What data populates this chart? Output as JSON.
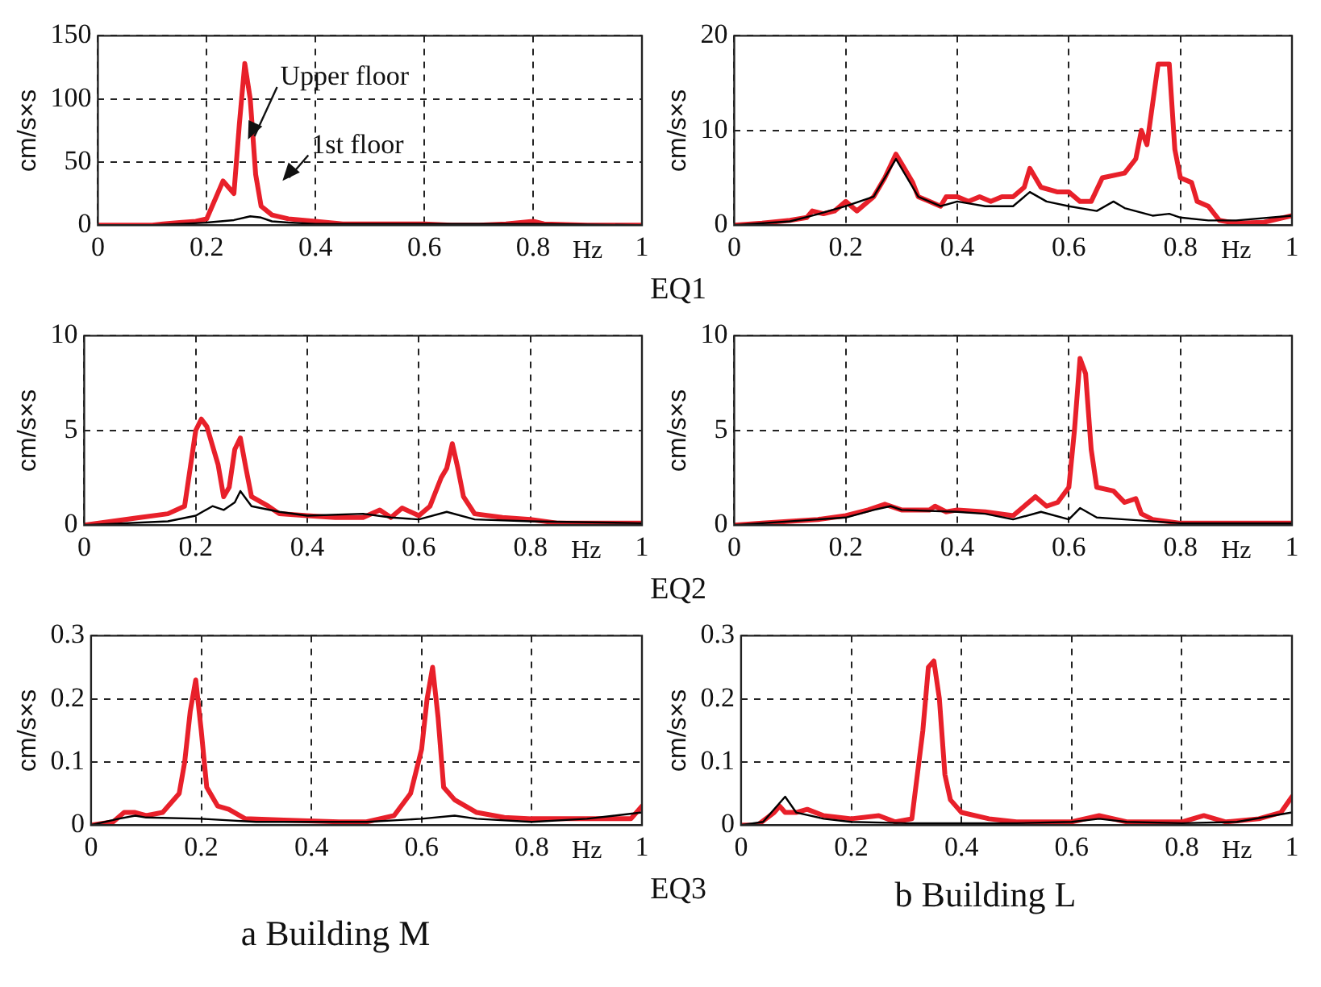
{
  "chart_data": [
    {
      "type": "line",
      "ylabel": "cm/s×s",
      "xlabel": "Hz",
      "annotations": [
        "EQ1"
      ],
      "xlim": [
        0,
        1
      ],
      "ylim": [
        0,
        150
      ],
      "xticks": [
        0,
        0.2,
        0.4,
        0.6,
        0.8,
        1
      ],
      "yticks": [
        0,
        50,
        100,
        150
      ],
      "grid": true,
      "legend": false,
      "marker": "none",
      "series": [
        {
          "name": "Upper floor",
          "color": "#e8202a",
          "x": [
            0,
            0.1,
            0.12,
            0.15,
            0.18,
            0.2,
            0.22,
            0.23,
            0.24,
            0.25,
            0.26,
            0.27,
            0.28,
            0.29,
            0.3,
            0.32,
            0.35,
            0.4,
            0.45,
            0.5,
            0.6,
            0.65,
            0.7,
            0.75,
            0.8,
            0.82,
            0.9,
            1
          ],
          "values": [
            0,
            0,
            1,
            2,
            3,
            5,
            25,
            35,
            30,
            25,
            80,
            128,
            100,
            40,
            15,
            8,
            5,
            3,
            1,
            1,
            1,
            0,
            0,
            1,
            3,
            1,
            0,
            0
          ]
        },
        {
          "name": "1st floor",
          "color": "#000000",
          "x": [
            0,
            0.1,
            0.2,
            0.25,
            0.28,
            0.3,
            0.32,
            0.35,
            0.4,
            0.5,
            0.6,
            0.8,
            1
          ],
          "values": [
            0,
            0,
            2,
            4,
            7,
            6,
            3,
            2,
            1,
            1,
            1,
            1,
            0
          ]
        }
      ]
    },
    {
      "type": "line",
      "ylabel": "cm/s×s",
      "xlabel": "Hz",
      "xlim": [
        0,
        1
      ],
      "ylim": [
        0,
        20
      ],
      "xticks": [
        0,
        0.2,
        0.4,
        0.6,
        0.8,
        1
      ],
      "yticks": [
        0,
        10,
        20
      ],
      "grid": true,
      "legend": false,
      "marker": "none",
      "series": [
        {
          "color": "#e8202a",
          "x": [
            0,
            0.05,
            0.1,
            0.13,
            0.14,
            0.16,
            0.18,
            0.2,
            0.22,
            0.25,
            0.27,
            0.29,
            0.3,
            0.32,
            0.33,
            0.35,
            0.37,
            0.38,
            0.4,
            0.42,
            0.44,
            0.46,
            0.48,
            0.5,
            0.52,
            0.53,
            0.55,
            0.58,
            0.6,
            0.62,
            0.64,
            0.66,
            0.7,
            0.72,
            0.73,
            0.74,
            0.76,
            0.78,
            0.79,
            0.8,
            0.82,
            0.83,
            0.85,
            0.87,
            0.9,
            0.95,
            1
          ],
          "values": [
            0,
            0.2,
            0.5,
            0.8,
            1.5,
            1.2,
            1.5,
            2.5,
            1.5,
            3,
            5,
            7.5,
            6.5,
            4.5,
            3,
            2.5,
            2,
            3,
            3,
            2.5,
            3,
            2.5,
            3,
            3,
            4,
            6,
            4,
            3.5,
            3.5,
            2.5,
            2.5,
            5,
            5.5,
            7,
            10,
            8.5,
            17,
            17,
            8,
            5,
            4.5,
            2.5,
            2,
            0.5,
            0.2,
            0.3,
            1
          ]
        },
        {
          "color": "#000000",
          "x": [
            0,
            0.1,
            0.14,
            0.2,
            0.25,
            0.29,
            0.31,
            0.33,
            0.37,
            0.4,
            0.45,
            0.5,
            0.53,
            0.56,
            0.6,
            0.65,
            0.68,
            0.7,
            0.75,
            0.78,
            0.8,
            0.85,
            0.9,
            1
          ],
          "values": [
            0,
            0.4,
            1,
            2,
            3,
            7,
            5,
            3,
            2,
            2.5,
            2,
            2,
            3.5,
            2.5,
            2,
            1.5,
            2.5,
            1.8,
            1,
            1.2,
            0.8,
            0.5,
            0.5,
            1
          ]
        }
      ]
    },
    {
      "type": "line",
      "ylabel": "cm/s×s",
      "xlabel": "Hz",
      "annotations": [
        "EQ2"
      ],
      "xlim": [
        0,
        1
      ],
      "ylim": [
        0,
        10
      ],
      "xticks": [
        0,
        0.2,
        0.4,
        0.6,
        0.8,
        1
      ],
      "yticks": [
        0,
        5,
        10
      ],
      "grid": true,
      "legend": false,
      "marker": "none",
      "series": [
        {
          "color": "#e8202a",
          "x": [
            0,
            0.05,
            0.1,
            0.15,
            0.18,
            0.19,
            0.2,
            0.21,
            0.22,
            0.24,
            0.25,
            0.26,
            0.27,
            0.28,
            0.29,
            0.3,
            0.33,
            0.35,
            0.4,
            0.45,
            0.5,
            0.53,
            0.55,
            0.57,
            0.6,
            0.62,
            0.64,
            0.65,
            0.66,
            0.67,
            0.68,
            0.7,
            0.75,
            0.8,
            0.85,
            1
          ],
          "values": [
            0,
            0.2,
            0.4,
            0.6,
            1,
            3,
            5,
            5.6,
            5.2,
            3.2,
            1.5,
            2,
            4,
            4.6,
            3,
            1.5,
            1,
            0.6,
            0.5,
            0.4,
            0.4,
            0.8,
            0.4,
            0.9,
            0.5,
            1,
            2.5,
            3,
            4.3,
            3,
            1.5,
            0.6,
            0.4,
            0.3,
            0.1,
            0.1
          ]
        },
        {
          "color": "#000000",
          "x": [
            0,
            0.15,
            0.2,
            0.23,
            0.25,
            0.27,
            0.28,
            0.3,
            0.35,
            0.4,
            0.5,
            0.55,
            0.6,
            0.65,
            0.7,
            0.8,
            1
          ],
          "values": [
            0,
            0.2,
            0.5,
            1,
            0.8,
            1.2,
            1.8,
            1,
            0.7,
            0.5,
            0.6,
            0.4,
            0.3,
            0.7,
            0.3,
            0.2,
            0.1
          ]
        }
      ]
    },
    {
      "type": "line",
      "ylabel": "cm/s×s",
      "xlabel": "Hz",
      "xlim": [
        0,
        1
      ],
      "ylim": [
        0,
        10
      ],
      "xticks": [
        0,
        0.2,
        0.4,
        0.6,
        0.8,
        1
      ],
      "yticks": [
        0,
        5,
        10
      ],
      "grid": true,
      "legend": false,
      "marker": "none",
      "series": [
        {
          "color": "#e8202a",
          "x": [
            0,
            0.05,
            0.1,
            0.15,
            0.2,
            0.24,
            0.27,
            0.3,
            0.35,
            0.36,
            0.38,
            0.4,
            0.45,
            0.5,
            0.52,
            0.54,
            0.56,
            0.58,
            0.6,
            0.61,
            0.62,
            0.63,
            0.64,
            0.65,
            0.68,
            0.7,
            0.72,
            0.73,
            0.75,
            0.8,
            0.9,
            1
          ],
          "values": [
            0,
            0.1,
            0.2,
            0.3,
            0.5,
            0.8,
            1.1,
            0.8,
            0.8,
            1,
            0.7,
            0.8,
            0.7,
            0.5,
            1,
            1.5,
            1,
            1.2,
            2,
            5,
            8.8,
            8,
            4,
            2,
            1.8,
            1.2,
            1.4,
            0.6,
            0.3,
            0.1,
            0.1,
            0.1
          ]
        },
        {
          "color": "#000000",
          "x": [
            0,
            0.2,
            0.25,
            0.28,
            0.3,
            0.4,
            0.45,
            0.5,
            0.55,
            0.6,
            0.62,
            0.65,
            0.7,
            0.8,
            1
          ],
          "values": [
            0,
            0.4,
            0.8,
            1,
            0.8,
            0.7,
            0.6,
            0.3,
            0.7,
            0.3,
            0.9,
            0.4,
            0.3,
            0.1,
            0.1
          ]
        }
      ]
    },
    {
      "type": "line",
      "ylabel": "cm/s×s",
      "xlabel": "Hz",
      "annotations": [
        "EQ3",
        "a Building M"
      ],
      "xlim": [
        0,
        1
      ],
      "ylim": [
        0,
        0.3
      ],
      "xticks": [
        0,
        0.2,
        0.4,
        0.6,
        0.8,
        1
      ],
      "yticks": [
        0,
        0.1,
        0.2,
        0.3
      ],
      "grid": true,
      "legend": false,
      "marker": "none",
      "series": [
        {
          "color": "#e8202a",
          "x": [
            0,
            0.04,
            0.06,
            0.08,
            0.1,
            0.13,
            0.16,
            0.17,
            0.18,
            0.19,
            0.2,
            0.21,
            0.23,
            0.25,
            0.28,
            0.35,
            0.45,
            0.5,
            0.55,
            0.58,
            0.6,
            0.61,
            0.62,
            0.63,
            0.64,
            0.66,
            0.7,
            0.75,
            0.8,
            0.9,
            0.98,
            1
          ],
          "values": [
            0,
            0.005,
            0.02,
            0.02,
            0.015,
            0.02,
            0.05,
            0.1,
            0.18,
            0.23,
            0.15,
            0.06,
            0.03,
            0.025,
            0.01,
            0.008,
            0.005,
            0.005,
            0.015,
            0.05,
            0.12,
            0.2,
            0.25,
            0.17,
            0.06,
            0.04,
            0.02,
            0.012,
            0.01,
            0.01,
            0.01,
            0.03
          ]
        },
        {
          "color": "#000000",
          "x": [
            0,
            0.05,
            0.08,
            0.1,
            0.2,
            0.3,
            0.5,
            0.6,
            0.66,
            0.7,
            0.8,
            0.9,
            0.95,
            1
          ],
          "values": [
            0,
            0.01,
            0.015,
            0.012,
            0.01,
            0.005,
            0.005,
            0.01,
            0.015,
            0.01,
            0.005,
            0.01,
            0.015,
            0.02
          ]
        }
      ]
    },
    {
      "type": "line",
      "ylabel": "cm/s×s",
      "xlabel": "Hz",
      "annotations": [
        "b Building L"
      ],
      "xlim": [
        0,
        1
      ],
      "ylim": [
        0,
        0.3
      ],
      "xticks": [
        0,
        0.2,
        0.4,
        0.6,
        0.8,
        1
      ],
      "yticks": [
        0,
        0.1,
        0.2,
        0.3
      ],
      "grid": true,
      "legend": false,
      "marker": "none",
      "series": [
        {
          "color": "#e8202a",
          "x": [
            0,
            0.03,
            0.06,
            0.07,
            0.08,
            0.1,
            0.12,
            0.15,
            0.2,
            0.25,
            0.28,
            0.31,
            0.33,
            0.34,
            0.35,
            0.36,
            0.37,
            0.38,
            0.4,
            0.45,
            0.5,
            0.6,
            0.65,
            0.7,
            0.8,
            0.84,
            0.88,
            0.94,
            0.98,
            1
          ],
          "values": [
            0,
            0,
            0.02,
            0.03,
            0.02,
            0.02,
            0.025,
            0.015,
            0.01,
            0.015,
            0.005,
            0.01,
            0.15,
            0.25,
            0.26,
            0.2,
            0.08,
            0.04,
            0.02,
            0.01,
            0.005,
            0.005,
            0.015,
            0.005,
            0.005,
            0.015,
            0.005,
            0.01,
            0.02,
            0.045
          ]
        },
        {
          "color": "#000000",
          "x": [
            0,
            0.04,
            0.08,
            0.1,
            0.15,
            0.2,
            0.3,
            0.4,
            0.5,
            0.6,
            0.65,
            0.7,
            0.8,
            0.9,
            1
          ],
          "values": [
            0,
            0.005,
            0.045,
            0.02,
            0.01,
            0.005,
            0.003,
            0.003,
            0.003,
            0.005,
            0.01,
            0.005,
            0.003,
            0.005,
            0.02
          ]
        }
      ]
    }
  ]
}
